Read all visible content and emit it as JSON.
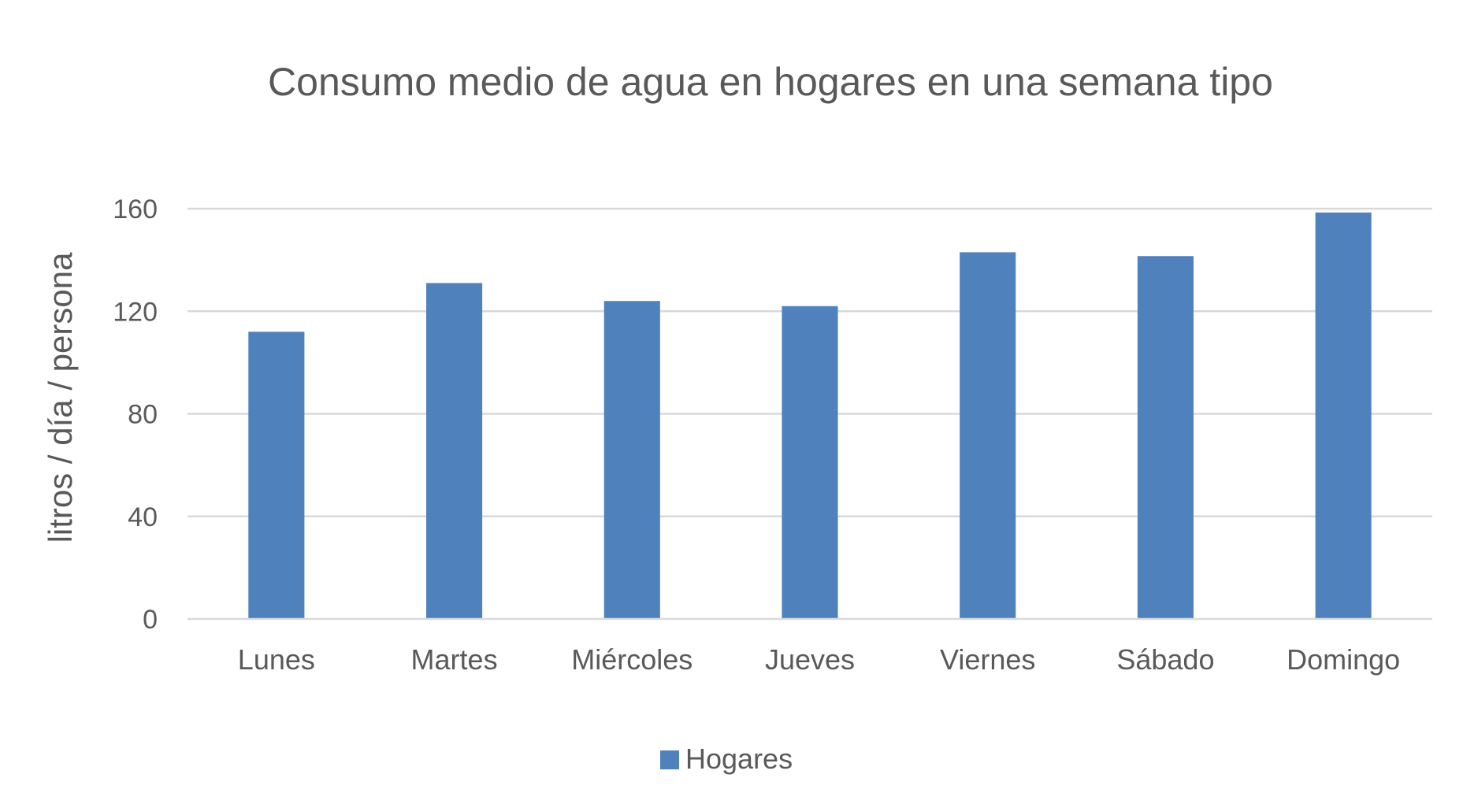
{
  "chart_data": {
    "type": "bar",
    "title": "Consumo medio de agua en hogares en una semana tipo",
    "xlabel": "",
    "ylabel": "litros / día / persona",
    "categories": [
      "Lunes",
      "Martes",
      "Miércoles",
      "Jueves",
      "Viernes",
      "Sábado",
      "Domingo"
    ],
    "series": [
      {
        "name": "Hogares",
        "color": "#4f81bd",
        "values": [
          112,
          131,
          124,
          122,
          143,
          141.5,
          158.5
        ]
      }
    ],
    "ylim": [
      0,
      160
    ],
    "yticks": [
      "0",
      "40",
      "80",
      "120",
      "160"
    ],
    "grid": true,
    "legend_position": "bottom"
  }
}
